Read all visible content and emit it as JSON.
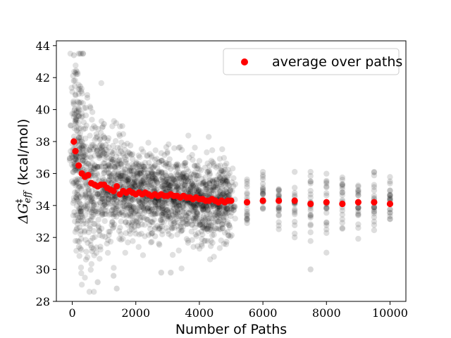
{
  "chart_data": {
    "type": "scatter",
    "title": "",
    "xlabel": "Number of Paths",
    "ylabel_parts": {
      "delta": "ΔG",
      "sup": "‡",
      "sub": "eff",
      "unit": "(kcal/mol)"
    },
    "xlim": [
      -500,
      10500
    ],
    "ylim": [
      28,
      44.3
    ],
    "x_ticks": [
      0,
      2000,
      4000,
      6000,
      8000,
      10000
    ],
    "y_ticks": [
      28,
      30,
      32,
      34,
      36,
      38,
      40,
      42,
      44
    ],
    "grid": false,
    "legend": {
      "position": "top-right",
      "entries": [
        "average over paths"
      ]
    },
    "colors": {
      "samples": "#000000",
      "average": "#ff0000"
    },
    "series": [
      {
        "name": "average over paths",
        "x": [
          50,
          100,
          200,
          300,
          400,
          500,
          600,
          700,
          800,
          900,
          1000,
          1100,
          1200,
          1300,
          1400,
          1500,
          1600,
          1700,
          1800,
          1900,
          2000,
          2100,
          2200,
          2300,
          2400,
          2500,
          2600,
          2700,
          2800,
          2900,
          3000,
          3100,
          3200,
          3300,
          3400,
          3500,
          3600,
          3700,
          3800,
          3900,
          4000,
          4100,
          4200,
          4300,
          4400,
          4500,
          4600,
          4700,
          4800,
          4900,
          5000,
          5500,
          6000,
          6500,
          7000,
          7500,
          8000,
          8500,
          9000,
          9500,
          10000
        ],
        "y": [
          38.0,
          37.4,
          36.5,
          36.0,
          35.8,
          35.9,
          35.4,
          35.3,
          35.2,
          35.3,
          35.3,
          35.1,
          35.0,
          34.9,
          35.2,
          34.7,
          34.9,
          34.8,
          34.9,
          34.8,
          34.7,
          34.8,
          34.7,
          34.8,
          34.7,
          34.6,
          34.7,
          34.6,
          34.7,
          34.6,
          34.6,
          34.7,
          34.6,
          34.6,
          34.5,
          34.6,
          34.5,
          34.5,
          34.4,
          34.5,
          34.4,
          34.4,
          34.3,
          34.3,
          34.4,
          34.3,
          34.2,
          34.3,
          34.2,
          34.3,
          34.3,
          34.2,
          34.3,
          34.3,
          34.3,
          34.1,
          34.2,
          34.1,
          34.2,
          34.2,
          34.1
        ]
      },
      {
        "name": "individual paths",
        "description": "semi-transparent black points; dense cloud for x in 50-5000 (step 50), sparse columns at 5500-10000 (step 500)",
        "dense_x_range": [
          50,
          5000
        ],
        "dense_step": 50,
        "sparse_x": [
          5500,
          6000,
          6500,
          7000,
          7500,
          8000,
          8500,
          9000,
          9500,
          10000
        ],
        "notable_points": [
          {
            "x": 50,
            "y": 43.4
          },
          {
            "x": 100,
            "y": 42.3
          },
          {
            "x": 50,
            "y": 41.8
          },
          {
            "x": 1000,
            "y": 39.1
          },
          {
            "x": 800,
            "y": 29.2
          },
          {
            "x": 1400,
            "y": 28.8
          },
          {
            "x": 1300,
            "y": 29.6
          },
          {
            "x": 7500,
            "y": 30.0
          },
          {
            "x": 2800,
            "y": 29.8
          },
          {
            "x": 3100,
            "y": 29.8
          }
        ]
      }
    ]
  }
}
